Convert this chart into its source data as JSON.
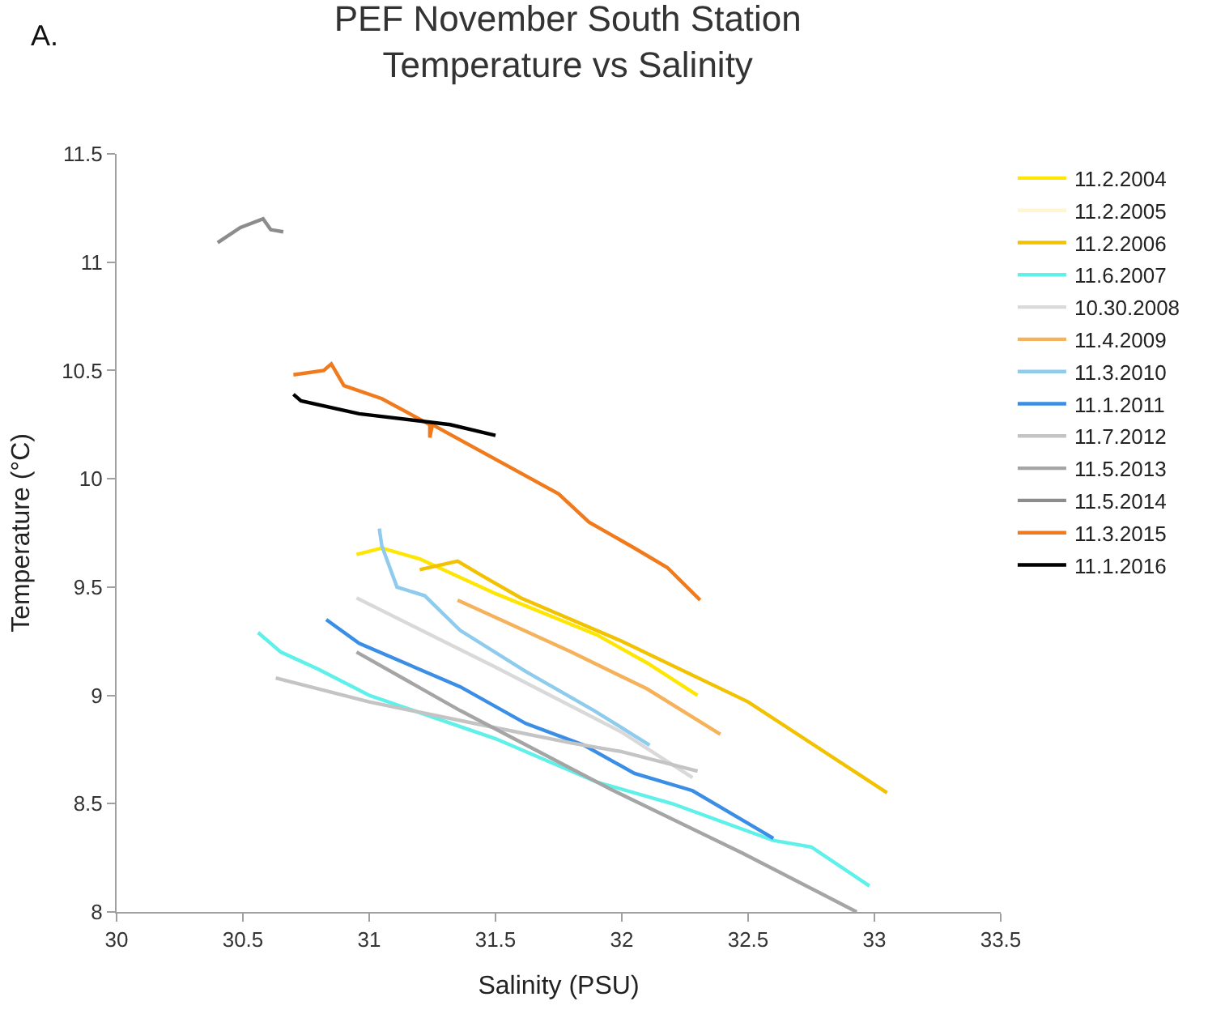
{
  "chart_data": {
    "type": "line",
    "title": "PEF November South Station\nTemperature vs Salinity",
    "xlabel": "Salinity (PSU)",
    "ylabel": "Temperature (°C)",
    "annotations": [
      "A."
    ],
    "xlim": [
      30,
      33.5
    ],
    "xticks": [
      30,
      30.5,
      31,
      31.5,
      32,
      32.5,
      33,
      33.5
    ],
    "ylim": [
      8,
      11.5
    ],
    "yticks": [
      8,
      8.5,
      9,
      9.5,
      10,
      10.5,
      11,
      11.5
    ],
    "legend": "right",
    "marker": "none",
    "line_style": "solid",
    "series": [
      {
        "name": "11.2.2004",
        "color": "#ffe600",
        "x": [
          30.95,
          31.05,
          31.2,
          31.5,
          31.9,
          32.1,
          32.3
        ],
        "values": [
          9.65,
          9.68,
          9.63,
          9.47,
          9.28,
          9.15,
          9.0
        ]
      },
      {
        "name": "11.2.2005",
        "color": "#fff6d0"
      },
      {
        "name": "11.2.2006",
        "color": "#f2c200",
        "x": [
          31.2,
          31.35,
          31.45,
          31.6,
          32.0,
          32.5,
          33.05
        ],
        "values": [
          9.58,
          9.62,
          9.55,
          9.45,
          9.25,
          8.97,
          8.55
        ]
      },
      {
        "name": "11.6.2007",
        "color": "#5ff0ea",
        "x": [
          30.56,
          30.65,
          30.8,
          31.0,
          31.5,
          31.9,
          32.2,
          32.6,
          32.75,
          32.98
        ],
        "values": [
          9.29,
          9.2,
          9.12,
          9.0,
          8.8,
          8.6,
          8.5,
          8.33,
          8.3,
          8.12
        ]
      },
      {
        "name": "10.30.2008",
        "color": "#d9d9d9",
        "x": [
          30.95,
          31.5,
          32.0,
          32.28
        ],
        "values": [
          9.45,
          9.13,
          8.83,
          8.62
        ]
      },
      {
        "name": "11.4.2009",
        "color": "#f6b25a",
        "x": [
          31.35,
          31.8,
          32.1,
          32.39
        ],
        "values": [
          9.44,
          9.2,
          9.03,
          8.82
        ]
      },
      {
        "name": "11.3.2010",
        "color": "#8ecbec",
        "x": [
          31.04,
          31.05,
          31.11,
          31.22,
          31.36,
          31.62,
          31.89,
          32.11
        ],
        "values": [
          9.77,
          9.69,
          9.5,
          9.46,
          9.3,
          9.11,
          8.93,
          8.77
        ]
      },
      {
        "name": "11.1.2011",
        "color": "#3a8ee6",
        "x": [
          30.83,
          30.96,
          31.36,
          31.62,
          31.85,
          32.05,
          32.28,
          32.6
        ],
        "values": [
          9.35,
          9.24,
          9.04,
          8.87,
          8.77,
          8.64,
          8.56,
          8.34
        ]
      },
      {
        "name": "11.7.2012",
        "color": "#c4c4c4",
        "x": [
          30.63,
          31.0,
          31.46,
          31.8,
          32.0,
          32.3
        ],
        "values": [
          9.08,
          8.97,
          8.86,
          8.78,
          8.74,
          8.65
        ]
      },
      {
        "name": "11.5.2013",
        "color": "#a5a5a5",
        "x": [
          30.95,
          31.36,
          31.95,
          32.48,
          32.93
        ],
        "values": [
          9.2,
          8.93,
          8.57,
          8.27,
          8.0
        ]
      },
      {
        "name": "11.5.2014",
        "color": "#8c8c8c",
        "x": [
          30.4,
          30.49,
          30.58,
          30.61,
          30.66
        ],
        "values": [
          11.09,
          11.16,
          11.2,
          11.15,
          11.14
        ]
      },
      {
        "name": "11.3.2015",
        "color": "#f07a1c",
        "x": [
          30.7,
          30.82,
          30.85,
          30.9,
          31.05,
          31.24,
          31.24,
          31.25,
          31.75,
          31.87,
          32.05,
          32.18,
          32.31
        ],
        "values": [
          10.48,
          10.5,
          10.53,
          10.43,
          10.37,
          10.25,
          10.19,
          10.25,
          9.93,
          9.8,
          9.68,
          9.59,
          9.44
        ]
      },
      {
        "name": "11.1.2016",
        "color": "#000000",
        "x": [
          30.7,
          30.73,
          30.96,
          31.32,
          31.5
        ],
        "values": [
          10.39,
          10.36,
          10.3,
          10.25,
          10.2
        ]
      }
    ]
  }
}
